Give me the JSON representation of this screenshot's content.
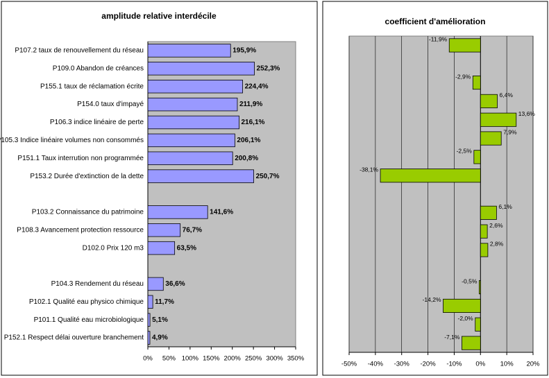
{
  "chart_data": [
    {
      "type": "bar",
      "orientation": "horizontal",
      "title": "amplitude relative interdécile",
      "categories": [
        "P107.2 taux de renouvellement du réseau",
        "P109.0 Abandon de créances",
        "P155.1 taux de réclamation écrite",
        "P154.0 taux d'impayé",
        "P106.3 indice linéaire de perte",
        "P105.3 Indice linéaire volumes  non consommés",
        "P151.1 Taux interrution non programmée",
        "P153.2 Durée d'extinction de la dette",
        null,
        "P103.2 Connaissance du patrimoine",
        "P108.3 Avancement protection ressource",
        "D102.0 Prix 120 m3",
        null,
        "P104.3 Rendement du réseau",
        "P102.1 Qualité eau physico chimique",
        "P101.1 Qualité eau microbiologique",
        "P152.1 Respect délai ouverture branchement"
      ],
      "values": [
        195.9,
        252.3,
        224.4,
        211.9,
        216.1,
        206.1,
        200.8,
        250.7,
        null,
        141.6,
        76.7,
        63.5,
        null,
        36.6,
        11.7,
        5.1,
        4.9
      ],
      "value_labels": [
        "195,9%",
        "252,3%",
        "224,4%",
        "211,9%",
        "216,1%",
        "206,1%",
        "200,8%",
        "250,7%",
        null,
        "141,6%",
        "76,7%",
        "63,5%",
        null,
        "36,6%",
        "11,7%",
        "5,1%",
        "4,9%"
      ],
      "color": "#9999ff",
      "xlim": [
        0,
        350
      ],
      "xticks": [
        {
          "value": 0,
          "label": "0%"
        },
        {
          "value": 50,
          "label": "50%"
        },
        {
          "value": 100,
          "label": "100%"
        },
        {
          "value": 150,
          "label": "150%"
        },
        {
          "value": 200,
          "label": "200%"
        },
        {
          "value": 250,
          "label": "250%"
        },
        {
          "value": 300,
          "label": "300%"
        },
        {
          "value": 350,
          "label": "350%"
        }
      ],
      "grid": false
    },
    {
      "type": "bar",
      "orientation": "horizontal",
      "title": "coefficient d'amélioration",
      "values": [
        -11.9,
        null,
        -2.9,
        6.4,
        13.6,
        7.9,
        -2.5,
        -38.1,
        null,
        6.1,
        2.6,
        2.8,
        null,
        -0.5,
        -14.2,
        -2.0,
        -7.1
      ],
      "value_labels": [
        "-11,9%",
        null,
        "-2,9%",
        "6,4%",
        "13,6%",
        "7,9%",
        "-2,5%",
        "-38,1%",
        null,
        "6,1%",
        "2,6%",
        "2,8%",
        null,
        "-0,5%",
        "-14,2%",
        "-2,0%",
        "-7,1%"
      ],
      "color": "#99cc00",
      "xlim": [
        -50,
        20
      ],
      "xticks": [
        {
          "value": -50,
          "label": "-50%"
        },
        {
          "value": -40,
          "label": "-40%"
        },
        {
          "value": -30,
          "label": "-30%"
        },
        {
          "value": -20,
          "label": "-20%"
        },
        {
          "value": -10,
          "label": "-10%"
        },
        {
          "value": 0,
          "label": "0%"
        },
        {
          "value": 10,
          "label": "10%"
        },
        {
          "value": 20,
          "label": "20%"
        }
      ],
      "grid": true
    }
  ]
}
